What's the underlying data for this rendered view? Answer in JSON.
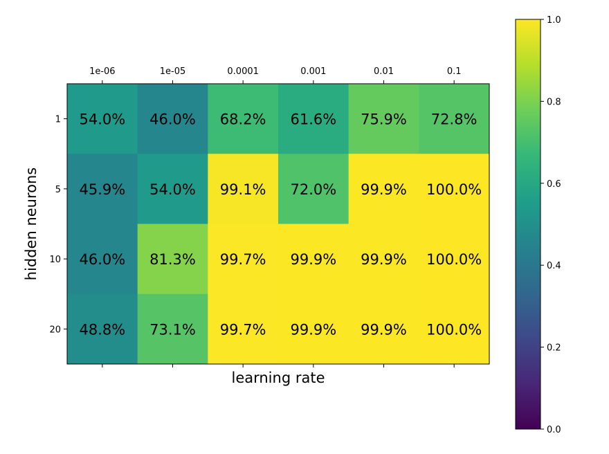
{
  "chart_data": {
    "type": "heatmap",
    "title": "",
    "xlabel": "learning rate",
    "ylabel": "hidden neurons",
    "x_categories": [
      "1e-06",
      "1e-05",
      "0.0001",
      "0.001",
      "0.01",
      "0.1"
    ],
    "y_categories": [
      "1",
      "5",
      "10",
      "20"
    ],
    "x_tick_position": "top",
    "values": [
      [
        54.0,
        46.0,
        68.2,
        61.6,
        75.9,
        72.8
      ],
      [
        45.9,
        54.0,
        99.1,
        72.0,
        99.9,
        100.0
      ],
      [
        46.0,
        81.3,
        99.7,
        99.9,
        99.9,
        100.0
      ],
      [
        48.8,
        73.1,
        99.7,
        99.9,
        99.9,
        100.0
      ]
    ],
    "cell_labels": [
      [
        "54.0%",
        "46.0%",
        "68.2%",
        "61.6%",
        "75.9%",
        "72.8%"
      ],
      [
        "45.9%",
        "54.0%",
        "99.1%",
        "72.0%",
        "99.9%",
        "100.0%"
      ],
      [
        "46.0%",
        "81.3%",
        "99.7%",
        "99.9%",
        "99.9%",
        "100.0%"
      ],
      [
        "48.8%",
        "73.1%",
        "99.7%",
        "99.9%",
        "99.9%",
        "100.0%"
      ]
    ],
    "colormap": "viridis",
    "color_min": 0.0,
    "color_max": 1.0,
    "colorbar": {
      "ticks": [
        "0.0",
        "0.2",
        "0.4",
        "0.6",
        "0.8",
        "1.0"
      ],
      "range": [
        0.0,
        1.0
      ],
      "placement": "right"
    }
  },
  "colors": {
    "viridis_stops": [
      "#440154",
      "#482777",
      "#3e4989",
      "#31688e",
      "#26828e",
      "#1f9e89",
      "#35b779",
      "#6ece58",
      "#b5de2b",
      "#fde725"
    ],
    "text": "#000000",
    "axis": "#000000",
    "background": "#ffffff"
  }
}
